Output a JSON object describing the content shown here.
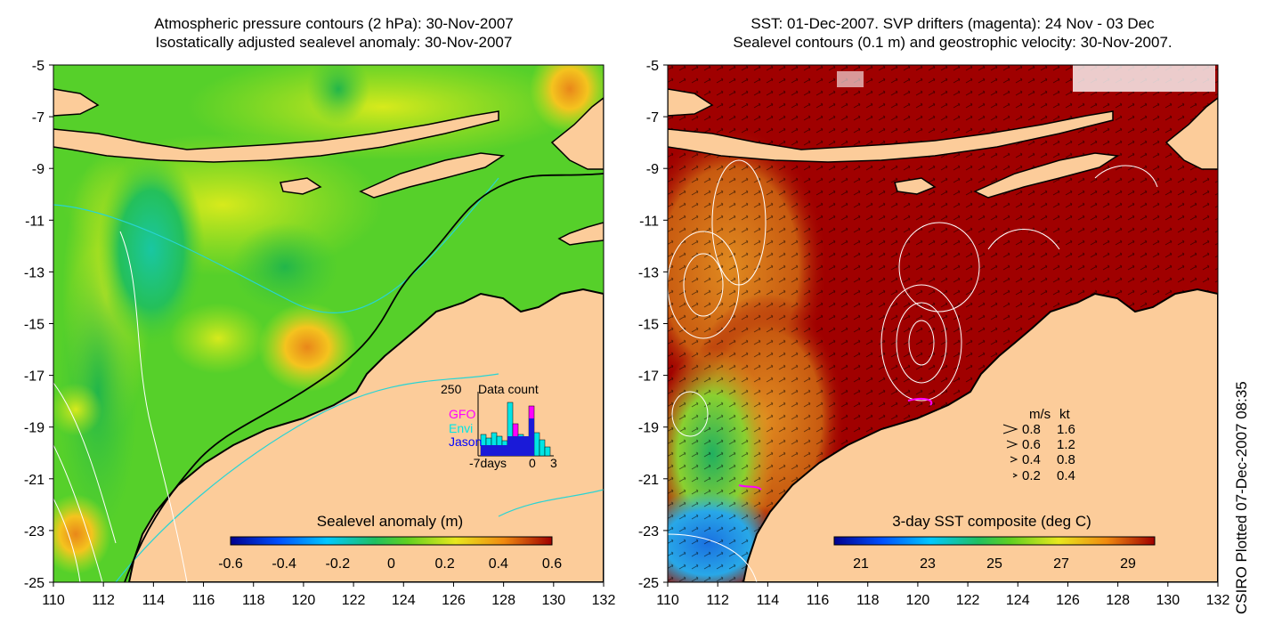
{
  "left_panel": {
    "title_line1": "Atmospheric pressure contours (2 hPa): 30-Nov-2007",
    "title_line2": "Isostatically adjusted sealevel anomaly: 30-Nov-2007",
    "colorbar_title": "Sealevel anomaly (m)",
    "colorbar_ticks": [
      "-0.6",
      "-0.4",
      "-0.2",
      "0",
      "0.2",
      "0.4",
      "0.6"
    ],
    "inset": {
      "count_label": "250",
      "title": "Data count",
      "x_left": "-7days",
      "x_mid": "0",
      "x_right": "3",
      "legend": [
        {
          "label": "GFO",
          "color": "#ff00ff"
        },
        {
          "label": "Envi",
          "color": "#00e5e5"
        },
        {
          "label": "Jason",
          "color": "#0000ff"
        }
      ]
    }
  },
  "right_panel": {
    "title_line1": "SST: 01-Dec-2007. SVP drifters (magenta): 24 Nov - 03 Dec",
    "title_line2": "Sealevel contours (0.1 m) and geostrophic velocity: 30-Nov-2007.",
    "colorbar_title": "3-day SST composite (deg C)",
    "colorbar_ticks": [
      "21",
      "23",
      "25",
      "27",
      "29"
    ],
    "velocity_legend": {
      "header_ms": "m/s",
      "header_kt": "kt",
      "rows": [
        {
          "ms": "0.8",
          "kt": "1.6"
        },
        {
          "ms": "0.6",
          "kt": "1.2"
        },
        {
          "ms": "0.4",
          "kt": "0.8"
        },
        {
          "ms": "0.2",
          "kt": "0.4"
        }
      ]
    }
  },
  "axes": {
    "lon_ticks": [
      "110",
      "112",
      "114",
      "116",
      "118",
      "120",
      "122",
      "124",
      "126",
      "128",
      "130",
      "132"
    ],
    "lat_ticks": [
      "-5",
      "-7",
      "-9",
      "-11",
      "-13",
      "-15",
      "-17",
      "-19",
      "-21",
      "-23",
      "-25"
    ]
  },
  "credit": "CSIRO Plotted 07-Dec-2007 08:35",
  "colors": {
    "land": "#fccc9a",
    "sst_warm": "#a00000",
    "anomaly_green": "#52d02a"
  }
}
